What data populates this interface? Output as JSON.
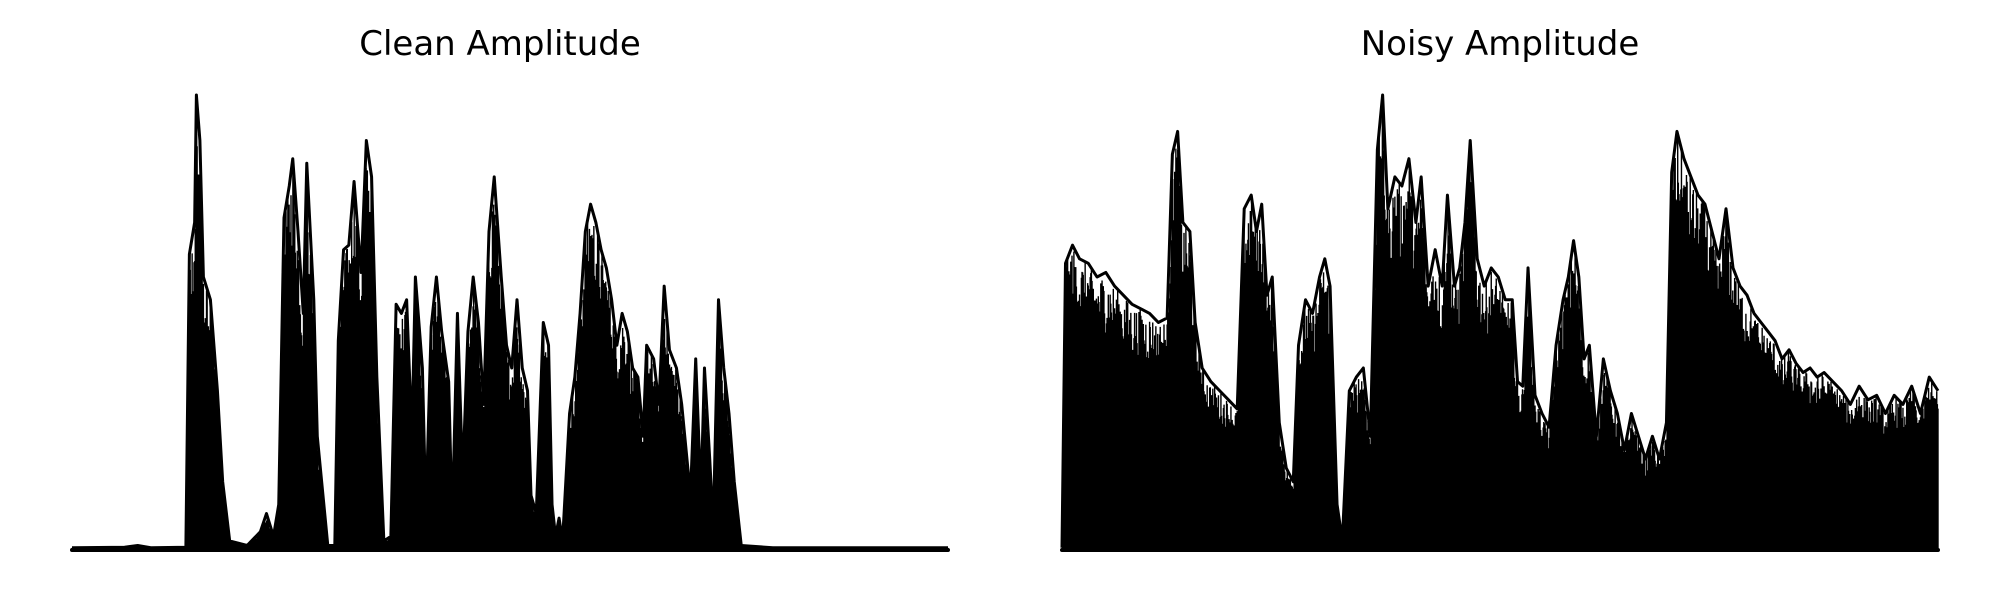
{
  "chart_data": [
    {
      "type": "area",
      "title": "Clean Amplitude",
      "xlabel": "",
      "ylabel": "",
      "axes_visible": false,
      "grid": false,
      "color": "#000000",
      "ylim": [
        0,
        1
      ],
      "xlim": [
        0,
        1
      ],
      "envelope": [
        [
          0.0,
          0.005
        ],
        [
          0.06,
          0.006
        ],
        [
          0.075,
          0.01
        ],
        [
          0.09,
          0.005
        ],
        [
          0.13,
          0.006
        ],
        [
          0.134,
          0.65
        ],
        [
          0.14,
          0.72
        ],
        [
          0.142,
          1.0
        ],
        [
          0.146,
          0.9
        ],
        [
          0.15,
          0.6
        ],
        [
          0.158,
          0.55
        ],
        [
          0.166,
          0.35
        ],
        [
          0.172,
          0.15
        ],
        [
          0.18,
          0.02
        ],
        [
          0.2,
          0.01
        ],
        [
          0.215,
          0.04
        ],
        [
          0.222,
          0.08
        ],
        [
          0.23,
          0.03
        ],
        [
          0.236,
          0.1
        ],
        [
          0.242,
          0.73
        ],
        [
          0.248,
          0.8
        ],
        [
          0.252,
          0.86
        ],
        [
          0.258,
          0.7
        ],
        [
          0.264,
          0.52
        ],
        [
          0.268,
          0.85
        ],
        [
          0.276,
          0.55
        ],
        [
          0.28,
          0.25
        ],
        [
          0.292,
          0.01
        ],
        [
          0.3,
          0.01
        ],
        [
          0.304,
          0.46
        ],
        [
          0.31,
          0.66
        ],
        [
          0.316,
          0.67
        ],
        [
          0.322,
          0.81
        ],
        [
          0.33,
          0.61
        ],
        [
          0.336,
          0.9
        ],
        [
          0.342,
          0.82
        ],
        [
          0.348,
          0.38
        ],
        [
          0.356,
          0.02
        ],
        [
          0.364,
          0.03
        ],
        [
          0.37,
          0.54
        ],
        [
          0.376,
          0.52
        ],
        [
          0.382,
          0.55
        ],
        [
          0.388,
          0.25
        ],
        [
          0.392,
          0.6
        ],
        [
          0.4,
          0.4
        ],
        [
          0.404,
          0.08
        ],
        [
          0.41,
          0.49
        ],
        [
          0.416,
          0.6
        ],
        [
          0.422,
          0.48
        ],
        [
          0.43,
          0.37
        ],
        [
          0.434,
          0.06
        ],
        [
          0.44,
          0.52
        ],
        [
          0.446,
          0.16
        ],
        [
          0.452,
          0.48
        ],
        [
          0.458,
          0.6
        ],
        [
          0.464,
          0.5
        ],
        [
          0.47,
          0.32
        ],
        [
          0.476,
          0.7
        ],
        [
          0.482,
          0.82
        ],
        [
          0.49,
          0.6
        ],
        [
          0.496,
          0.45
        ],
        [
          0.502,
          0.4
        ],
        [
          0.508,
          0.55
        ],
        [
          0.514,
          0.4
        ],
        [
          0.52,
          0.35
        ],
        [
          0.524,
          0.12
        ],
        [
          0.53,
          0.08
        ],
        [
          0.538,
          0.5
        ],
        [
          0.544,
          0.45
        ],
        [
          0.548,
          0.1
        ],
        [
          0.552,
          0.03
        ],
        [
          0.556,
          0.07
        ],
        [
          0.56,
          0.02
        ],
        [
          0.568,
          0.3
        ],
        [
          0.574,
          0.38
        ],
        [
          0.58,
          0.52
        ],
        [
          0.586,
          0.7
        ],
        [
          0.592,
          0.76
        ],
        [
          0.598,
          0.72
        ],
        [
          0.604,
          0.66
        ],
        [
          0.61,
          0.62
        ],
        [
          0.616,
          0.55
        ],
        [
          0.622,
          0.45
        ],
        [
          0.628,
          0.52
        ],
        [
          0.634,
          0.48
        ],
        [
          0.64,
          0.4
        ],
        [
          0.646,
          0.38
        ],
        [
          0.652,
          0.25
        ],
        [
          0.656,
          0.45
        ],
        [
          0.664,
          0.42
        ],
        [
          0.67,
          0.32
        ],
        [
          0.676,
          0.58
        ],
        [
          0.682,
          0.44
        ],
        [
          0.69,
          0.4
        ],
        [
          0.696,
          0.32
        ],
        [
          0.702,
          0.2
        ],
        [
          0.706,
          0.12
        ],
        [
          0.712,
          0.42
        ],
        [
          0.718,
          0.12
        ],
        [
          0.722,
          0.4
        ],
        [
          0.728,
          0.2
        ],
        [
          0.732,
          0.05
        ],
        [
          0.738,
          0.55
        ],
        [
          0.744,
          0.4
        ],
        [
          0.75,
          0.3
        ],
        [
          0.756,
          0.15
        ],
        [
          0.764,
          0.01
        ],
        [
          0.8,
          0.005
        ],
        [
          1.0,
          0.005
        ]
      ]
    },
    {
      "type": "area",
      "title": "Noisy Amplitude",
      "xlabel": "",
      "ylabel": "",
      "axes_visible": false,
      "grid": false,
      "color": "#000000",
      "ylim": [
        0,
        1
      ],
      "xlim": [
        0,
        1
      ],
      "envelope": [
        [
          0.0,
          0.005
        ],
        [
          0.004,
          0.63
        ],
        [
          0.012,
          0.67
        ],
        [
          0.02,
          0.64
        ],
        [
          0.03,
          0.63
        ],
        [
          0.04,
          0.6
        ],
        [
          0.05,
          0.61
        ],
        [
          0.06,
          0.58
        ],
        [
          0.07,
          0.56
        ],
        [
          0.08,
          0.54
        ],
        [
          0.09,
          0.53
        ],
        [
          0.1,
          0.52
        ],
        [
          0.11,
          0.5
        ],
        [
          0.12,
          0.51
        ],
        [
          0.126,
          0.87
        ],
        [
          0.132,
          0.92
        ],
        [
          0.138,
          0.72
        ],
        [
          0.146,
          0.7
        ],
        [
          0.152,
          0.5
        ],
        [
          0.16,
          0.4
        ],
        [
          0.17,
          0.37
        ],
        [
          0.18,
          0.35
        ],
        [
          0.19,
          0.33
        ],
        [
          0.2,
          0.31
        ],
        [
          0.208,
          0.75
        ],
        [
          0.216,
          0.78
        ],
        [
          0.222,
          0.7
        ],
        [
          0.228,
          0.76
        ],
        [
          0.234,
          0.56
        ],
        [
          0.24,
          0.6
        ],
        [
          0.248,
          0.28
        ],
        [
          0.256,
          0.18
        ],
        [
          0.264,
          0.15
        ],
        [
          0.27,
          0.45
        ],
        [
          0.278,
          0.55
        ],
        [
          0.286,
          0.52
        ],
        [
          0.294,
          0.6
        ],
        [
          0.3,
          0.64
        ],
        [
          0.306,
          0.58
        ],
        [
          0.314,
          0.1
        ],
        [
          0.32,
          0.02
        ],
        [
          0.328,
          0.35
        ],
        [
          0.336,
          0.38
        ],
        [
          0.344,
          0.4
        ],
        [
          0.352,
          0.25
        ],
        [
          0.36,
          0.88
        ],
        [
          0.366,
          1.0
        ],
        [
          0.372,
          0.75
        ],
        [
          0.38,
          0.82
        ],
        [
          0.388,
          0.8
        ],
        [
          0.396,
          0.86
        ],
        [
          0.404,
          0.72
        ],
        [
          0.41,
          0.82
        ],
        [
          0.418,
          0.58
        ],
        [
          0.426,
          0.66
        ],
        [
          0.434,
          0.58
        ],
        [
          0.44,
          0.78
        ],
        [
          0.448,
          0.58
        ],
        [
          0.454,
          0.62
        ],
        [
          0.46,
          0.72
        ],
        [
          0.466,
          0.9
        ],
        [
          0.474,
          0.64
        ],
        [
          0.482,
          0.58
        ],
        [
          0.49,
          0.62
        ],
        [
          0.498,
          0.6
        ],
        [
          0.506,
          0.55
        ],
        [
          0.514,
          0.55
        ],
        [
          0.52,
          0.37
        ],
        [
          0.526,
          0.36
        ],
        [
          0.532,
          0.62
        ],
        [
          0.54,
          0.34
        ],
        [
          0.548,
          0.3
        ],
        [
          0.556,
          0.27
        ],
        [
          0.564,
          0.45
        ],
        [
          0.572,
          0.55
        ],
        [
          0.578,
          0.6
        ],
        [
          0.584,
          0.68
        ],
        [
          0.59,
          0.6
        ],
        [
          0.596,
          0.42
        ],
        [
          0.602,
          0.45
        ],
        [
          0.61,
          0.25
        ],
        [
          0.618,
          0.42
        ],
        [
          0.626,
          0.35
        ],
        [
          0.634,
          0.3
        ],
        [
          0.642,
          0.22
        ],
        [
          0.65,
          0.3
        ],
        [
          0.658,
          0.25
        ],
        [
          0.666,
          0.2
        ],
        [
          0.674,
          0.25
        ],
        [
          0.682,
          0.2
        ],
        [
          0.69,
          0.28
        ],
        [
          0.696,
          0.83
        ],
        [
          0.702,
          0.92
        ],
        [
          0.71,
          0.86
        ],
        [
          0.718,
          0.82
        ],
        [
          0.726,
          0.78
        ],
        [
          0.734,
          0.76
        ],
        [
          0.742,
          0.7
        ],
        [
          0.75,
          0.64
        ],
        [
          0.758,
          0.75
        ],
        [
          0.766,
          0.62
        ],
        [
          0.774,
          0.58
        ],
        [
          0.782,
          0.56
        ],
        [
          0.79,
          0.52
        ],
        [
          0.798,
          0.5
        ],
        [
          0.806,
          0.48
        ],
        [
          0.814,
          0.46
        ],
        [
          0.822,
          0.42
        ],
        [
          0.83,
          0.44
        ],
        [
          0.838,
          0.41
        ],
        [
          0.846,
          0.39
        ],
        [
          0.854,
          0.4
        ],
        [
          0.862,
          0.38
        ],
        [
          0.87,
          0.39
        ],
        [
          0.88,
          0.37
        ],
        [
          0.89,
          0.35
        ],
        [
          0.9,
          0.32
        ],
        [
          0.91,
          0.36
        ],
        [
          0.92,
          0.33
        ],
        [
          0.93,
          0.34
        ],
        [
          0.94,
          0.3
        ],
        [
          0.95,
          0.34
        ],
        [
          0.96,
          0.32
        ],
        [
          0.97,
          0.36
        ],
        [
          0.98,
          0.3
        ],
        [
          0.99,
          0.38
        ],
        [
          1.0,
          0.35
        ]
      ]
    }
  ]
}
